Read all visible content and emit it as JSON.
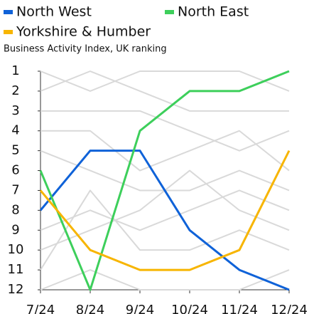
{
  "chart_data": {
    "type": "line",
    "subtitle": "Business Activity Index, UK ranking",
    "categories": [
      "7/24",
      "8/24",
      "9/24",
      "10/24",
      "11/24",
      "12/24"
    ],
    "series": [
      {
        "name": "North West",
        "color": "#0f62d8",
        "values": [
          8,
          5,
          5,
          9,
          11,
          12
        ]
      },
      {
        "name": "North East",
        "color": "#3dcf5b",
        "values": [
          6,
          12,
          4,
          2,
          2,
          1
        ]
      },
      {
        "name": "Yorkshire & Humber",
        "color": "#f7b500",
        "values": [
          7,
          10,
          11,
          11,
          10,
          5
        ]
      }
    ],
    "other_series": {
      "color": "#d9d9d9",
      "values": [
        [
          1,
          2,
          1,
          1,
          1,
          2
        ],
        [
          2,
          1,
          2,
          3,
          3,
          3
        ],
        [
          3,
          3,
          3,
          4,
          5,
          4
        ],
        [
          4,
          4,
          6,
          5,
          4,
          6
        ],
        [
          5,
          6,
          7,
          7,
          6,
          7
        ],
        [
          9,
          8,
          9,
          8,
          7,
          8
        ],
        [
          10,
          9,
          8,
          6,
          8,
          9
        ],
        [
          11,
          7,
          10,
          10,
          9,
          10
        ],
        [
          12,
          11,
          12,
          12,
          12,
          11
        ]
      ]
    },
    "ylim": [
      12,
      1
    ],
    "yticks": [
      1,
      2,
      3,
      4,
      5,
      6,
      7,
      8,
      9,
      10,
      11,
      12
    ]
  }
}
